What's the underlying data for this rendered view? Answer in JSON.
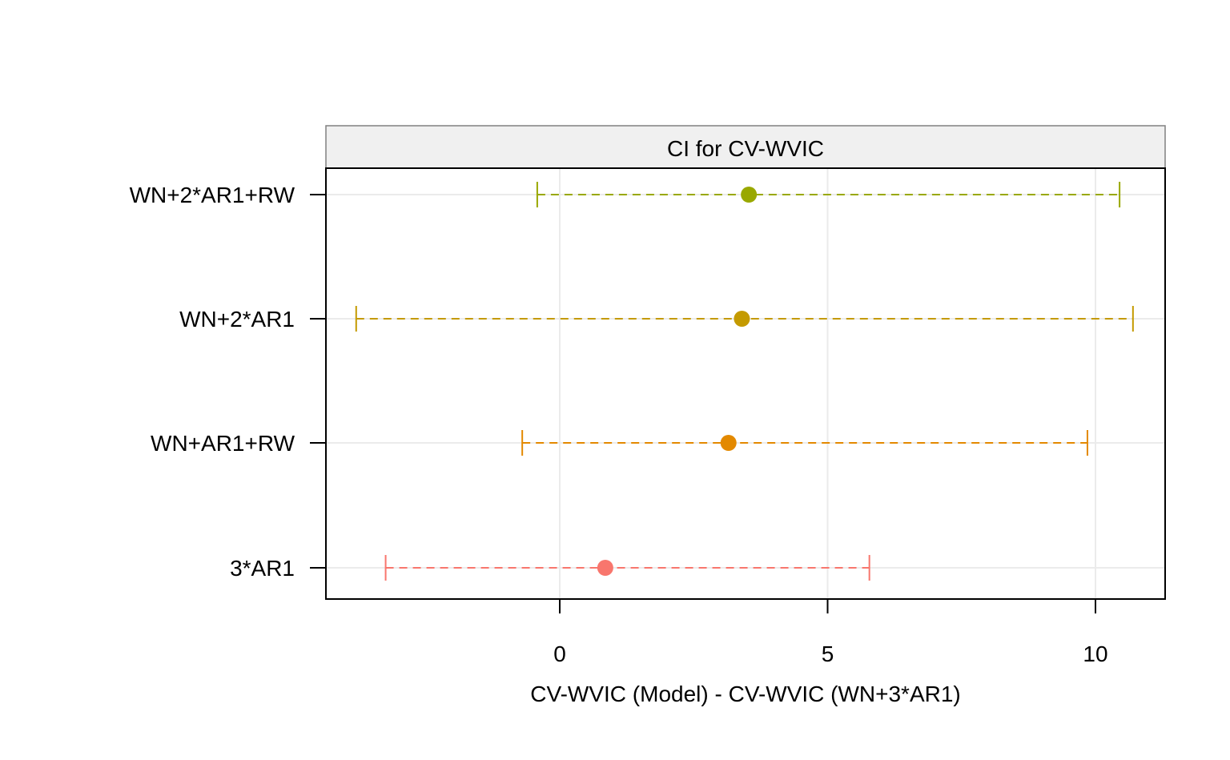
{
  "chart_data": {
    "type": "errorbar",
    "title": "CI for CV-WVIC",
    "xlabel": "CV-WVIC (Model) - CV-WVIC (WN+3*AR1)",
    "ylabel": "",
    "xlim": [
      -4.4,
      11.3
    ],
    "xticks": [
      0,
      5,
      10
    ],
    "grid": true,
    "categories": [
      "3*AR1",
      "WN+AR1+RW",
      "WN+2*AR1",
      "WN+2*AR1+RW"
    ],
    "estimates": [
      0.85,
      3.15,
      3.4,
      3.53
    ],
    "lower": [
      -3.25,
      -0.7,
      -3.8,
      -0.42
    ],
    "upper": [
      5.78,
      9.85,
      10.7,
      10.45
    ],
    "colors": [
      "#F8766D",
      "#E38900",
      "#C49A00",
      "#99A800"
    ]
  },
  "strip_bg": "#F0F0F0",
  "grid_color": "#EBEBEB"
}
